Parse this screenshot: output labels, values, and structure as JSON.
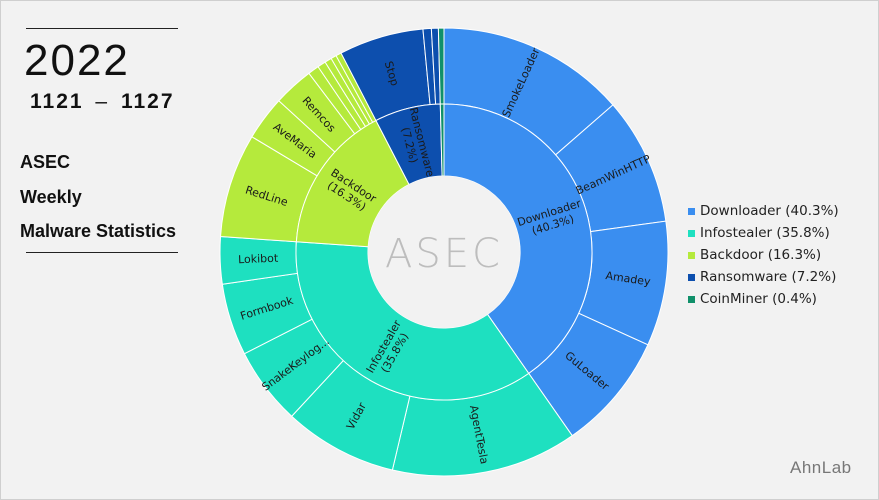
{
  "header": {
    "year": "2022",
    "range_start": "1121",
    "range_sep": "–",
    "range_end": "1127",
    "title_lines": [
      "ASEC",
      "Weekly",
      "Malware Statistics"
    ]
  },
  "center_logo_text": "ASEC",
  "brand": "AhnLab",
  "chart_data": {
    "type": "sunburst",
    "title": "",
    "legend_position": "right",
    "categories": [
      {
        "name": "Downloader",
        "inner_label": "Downloader",
        "share_label": "(40.3%)",
        "legend_label": "Downloader (40.3%)",
        "value": 40.3,
        "color": "#3a8ef0",
        "children": [
          {
            "label": "SmokeLoader",
            "value": 13.6
          },
          {
            "label": "BeamWinHTTP",
            "value": 9.2
          },
          {
            "label": "Amadey",
            "value": 9.0
          },
          {
            "label": "GuLoader",
            "value": 8.5
          }
        ]
      },
      {
        "name": "Infostealer",
        "inner_label": "Infostealer",
        "share_label": "(35.8%)",
        "legend_label": "Infostealer (35.8%)",
        "value": 35.8,
        "color": "#1ee0c0",
        "children": [
          {
            "label": "AgentTesla",
            "value": 13.4
          },
          {
            "label": "Vidar",
            "value": 8.2
          },
          {
            "label": "SnakeKeylog...",
            "value": 5.6
          },
          {
            "label": "Formbook",
            "value": 5.2
          },
          {
            "label": "Lokibot",
            "value": 3.4
          }
        ]
      },
      {
        "name": "Backdoor",
        "inner_label": "Backdoor",
        "share_label": "(16.3%)",
        "legend_label": "Backdoor (16.3%)",
        "value": 16.3,
        "color": "#b5ea3c",
        "children": [
          {
            "label": "RedLine",
            "value": 7.5
          },
          {
            "label": "AveMaria",
            "value": 3.2
          },
          {
            "label": "Remcos",
            "value": 2.9
          },
          {
            "label": "",
            "value": 0.8
          },
          {
            "label": "",
            "value": 0.6
          },
          {
            "label": "",
            "value": 0.5
          },
          {
            "label": "",
            "value": 0.4
          },
          {
            "label": "",
            "value": 0.4
          }
        ]
      },
      {
        "name": "Ransomware",
        "inner_label": "Ransomware",
        "share_label": "(7.2%)",
        "legend_label": "Ransomware (7.2%)",
        "value": 7.2,
        "color": "#0d4fae",
        "children": [
          {
            "label": "Stop",
            "value": 6.1
          },
          {
            "label": "",
            "value": 0.6
          },
          {
            "label": "",
            "value": 0.5
          }
        ]
      },
      {
        "name": "CoinMiner",
        "inner_label": "",
        "share_label": "",
        "legend_label": "CoinMiner (0.4%)",
        "value": 0.4,
        "color": "#10906a",
        "children": [
          {
            "label": "",
            "value": 0.4
          }
        ]
      }
    ]
  }
}
